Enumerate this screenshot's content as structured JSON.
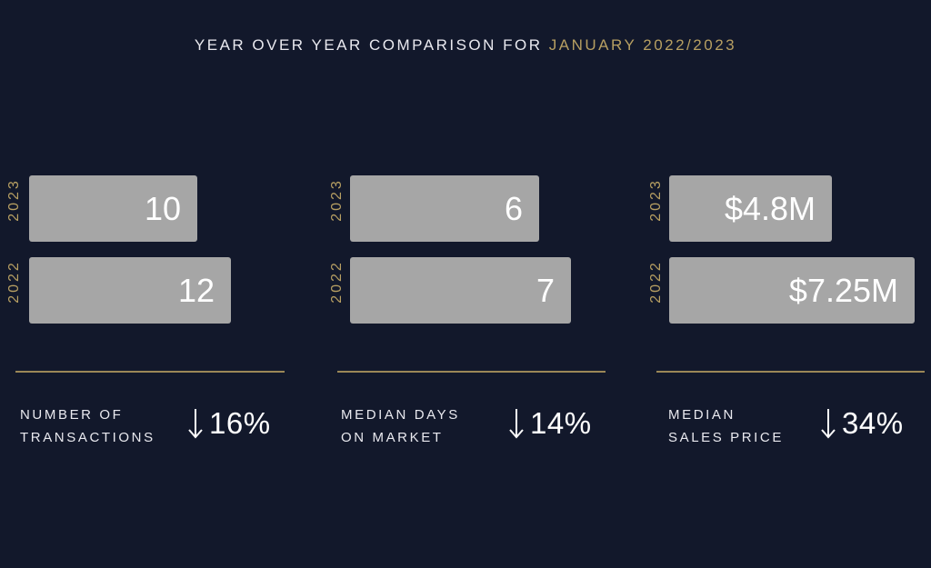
{
  "header": {
    "title_prefix": "YEAR OVER YEAR COMPARISON FOR",
    "title_period": "JANUARY 2022/2023",
    "accent_color": "#b79f62",
    "background_color": "#12182b",
    "bar_color": "#a6a6a6"
  },
  "panels": [
    {
      "metric_line1": "NUMBER OF",
      "metric_line2": "TRANSACTIONS",
      "change_icon": "down-arrow-icon",
      "change": "16%",
      "bars": [
        {
          "year": "2023",
          "value": 10,
          "label": "10"
        },
        {
          "year": "2022",
          "value": 12,
          "label": "12"
        }
      ]
    },
    {
      "metric_line1": "MEDIAN DAYS",
      "metric_line2": "ON MARKET",
      "change_icon": "down-arrow-icon",
      "change": "14%",
      "bars": [
        {
          "year": "2023",
          "value": 6,
          "label": "6"
        },
        {
          "year": "2022",
          "value": 7,
          "label": "7"
        }
      ]
    },
    {
      "metric_line1": "MEDIAN",
      "metric_line2": "SALES PRICE",
      "change_icon": "down-arrow-icon",
      "change": "34%",
      "bars": [
        {
          "year": "2023",
          "value": 4.8,
          "label": "$4.8M"
        },
        {
          "year": "2022",
          "value": 7.25,
          "label": "$7.25M"
        }
      ]
    }
  ],
  "chart_data": [
    {
      "type": "bar",
      "orientation": "horizontal",
      "categories": [
        "2023",
        "2022"
      ],
      "values": [
        10,
        12
      ],
      "data_labels": [
        "10",
        "12"
      ],
      "xlabel": "NUMBER OF TRANSACTIONS",
      "change": "16%",
      "grid": false
    },
    {
      "type": "bar",
      "orientation": "horizontal",
      "categories": [
        "2023",
        "2022"
      ],
      "values": [
        6,
        7
      ],
      "data_labels": [
        "6",
        "7"
      ],
      "xlabel": "MEDIAN DAYS ON MARKET",
      "change": "14%",
      "grid": false
    },
    {
      "type": "bar",
      "orientation": "horizontal",
      "categories": [
        "2023",
        "2022"
      ],
      "values": [
        4.8,
        7.25
      ],
      "data_labels": [
        "$4.8M",
        "$7.25M"
      ],
      "xlabel": "MEDIAN SALES PRICE",
      "change": "34%",
      "grid": false
    }
  ]
}
